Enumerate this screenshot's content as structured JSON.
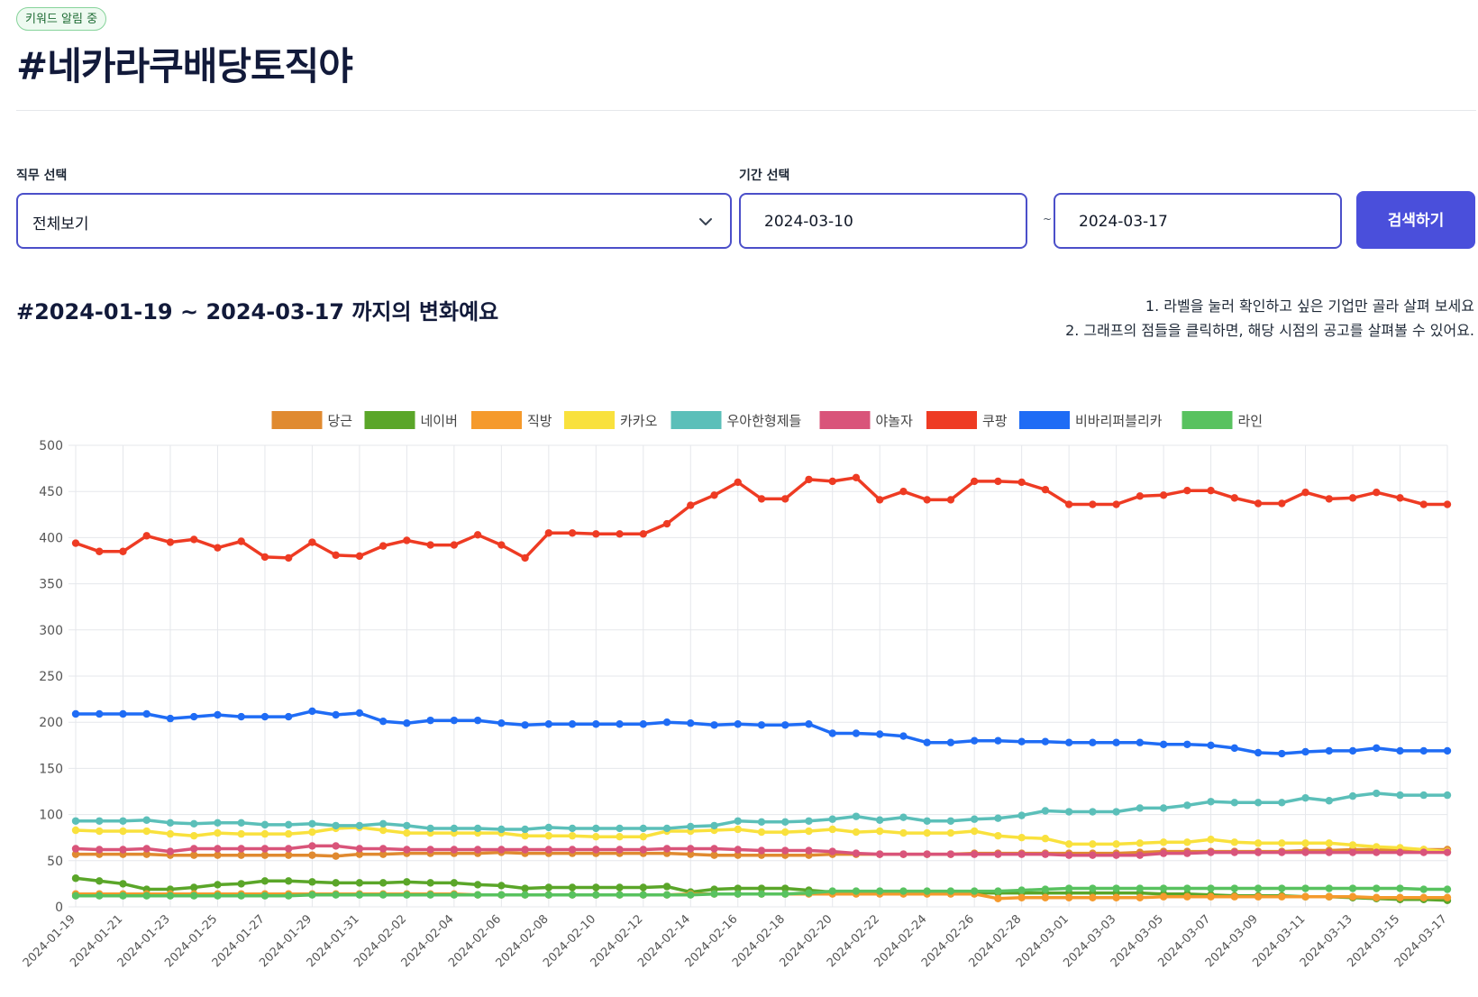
{
  "header": {
    "badge": "키워드 알림 중",
    "title": "#네카라쿠배당토직야"
  },
  "filters": {
    "job_label": "직무 선택",
    "job_value": "전체보기",
    "period_label": "기간 선택",
    "start_date": "2024-03-10",
    "tilde": "~",
    "end_date": "2024-03-17",
    "search_label": "검색하기"
  },
  "section": {
    "subtitle": "#2024-01-19 ~ 2024-03-17 까지의 변화예요",
    "note1": "1. 라벨을 눌러 확인하고 싶은 기업만 골라 살펴 보세요",
    "note2": "2. 그래프의 점들을 클릭하면, 해당 시점의 공고를 살펴볼 수 있어요."
  },
  "chart_data": {
    "type": "line",
    "ylim": [
      0,
      500
    ],
    "yticks": [
      0,
      50,
      100,
      150,
      200,
      250,
      300,
      350,
      400,
      450,
      500
    ],
    "legend_position": "top",
    "grid": true,
    "x": [
      "2024-01-19",
      "2024-01-20",
      "2024-01-21",
      "2024-01-22",
      "2024-01-23",
      "2024-01-24",
      "2024-01-25",
      "2024-01-26",
      "2024-01-27",
      "2024-01-28",
      "2024-01-29",
      "2024-01-30",
      "2024-01-31",
      "2024-02-01",
      "2024-02-02",
      "2024-02-03",
      "2024-02-04",
      "2024-02-05",
      "2024-02-06",
      "2024-02-07",
      "2024-02-08",
      "2024-02-09",
      "2024-02-10",
      "2024-02-11",
      "2024-02-12",
      "2024-02-13",
      "2024-02-14",
      "2024-02-15",
      "2024-02-16",
      "2024-02-17",
      "2024-02-18",
      "2024-02-19",
      "2024-02-20",
      "2024-02-21",
      "2024-02-22",
      "2024-02-23",
      "2024-02-24",
      "2024-02-25",
      "2024-02-26",
      "2024-02-27",
      "2024-02-28",
      "2024-02-29",
      "2024-03-01",
      "2024-03-02",
      "2024-03-03",
      "2024-03-04",
      "2024-03-05",
      "2024-03-06",
      "2024-03-07",
      "2024-03-08",
      "2024-03-09",
      "2024-03-10",
      "2024-03-11",
      "2024-03-12",
      "2024-03-13",
      "2024-03-14",
      "2024-03-15",
      "2024-03-16",
      "2024-03-17"
    ],
    "xticks": [
      "2024-01-19",
      "2024-01-21",
      "2024-01-23",
      "2024-01-25",
      "2024-01-27",
      "2024-01-29",
      "2024-01-31",
      "2024-02-02",
      "2024-02-04",
      "2024-02-06",
      "2024-02-08",
      "2024-02-10",
      "2024-02-12",
      "2024-02-14",
      "2024-02-16",
      "2024-02-18",
      "2024-02-20",
      "2024-02-22",
      "2024-02-24",
      "2024-02-26",
      "2024-02-28",
      "2024-03-01",
      "2024-03-03",
      "2024-03-05",
      "2024-03-07",
      "2024-03-09",
      "2024-03-11",
      "2024-03-13",
      "2024-03-15",
      "2024-03-17"
    ],
    "series": [
      {
        "name": "당근",
        "color": "#e08a30",
        "values": [
          57,
          57,
          57,
          57,
          56,
          56,
          56,
          56,
          56,
          56,
          56,
          55,
          57,
          57,
          58,
          58,
          58,
          58,
          59,
          58,
          58,
          58,
          58,
          58,
          58,
          58,
          57,
          56,
          56,
          56,
          56,
          56,
          57,
          57,
          57,
          57,
          57,
          57,
          58,
          58,
          58,
          58,
          58,
          58,
          58,
          59,
          60,
          60,
          60,
          60,
          60,
          60,
          61,
          61,
          62,
          62,
          62,
          62,
          62
        ]
      },
      {
        "name": "네이버",
        "color": "#5aa629",
        "values": [
          31,
          28,
          25,
          19,
          19,
          21,
          24,
          25,
          28,
          28,
          27,
          26,
          26,
          26,
          27,
          26,
          26,
          24,
          23,
          20,
          21,
          21,
          21,
          21,
          21,
          22,
          16,
          19,
          20,
          20,
          20,
          18,
          16,
          16,
          15,
          15,
          15,
          15,
          15,
          15,
          15,
          15,
          15,
          15,
          15,
          15,
          14,
          14,
          13,
          12,
          12,
          12,
          11,
          11,
          10,
          9,
          8,
          8,
          7
        ]
      },
      {
        "name": "직방",
        "color": "#f59a2c",
        "values": [
          14,
          14,
          14,
          14,
          14,
          14,
          14,
          14,
          14,
          14,
          14,
          14,
          14,
          14,
          14,
          14,
          14,
          13,
          13,
          13,
          13,
          13,
          13,
          13,
          13,
          13,
          14,
          14,
          14,
          14,
          14,
          14,
          14,
          14,
          14,
          14,
          14,
          14,
          14,
          9,
          10,
          10,
          10,
          10,
          10,
          10,
          11,
          11,
          11,
          11,
          11,
          11,
          11,
          11,
          11,
          10,
          10,
          10,
          10
        ]
      },
      {
        "name": "카카오",
        "color": "#f9e13d",
        "values": [
          83,
          82,
          82,
          82,
          79,
          77,
          80,
          79,
          79,
          79,
          81,
          85,
          86,
          83,
          80,
          80,
          80,
          80,
          80,
          77,
          77,
          77,
          76,
          76,
          76,
          82,
          82,
          83,
          84,
          81,
          81,
          82,
          84,
          81,
          82,
          80,
          80,
          80,
          82,
          77,
          75,
          74,
          68,
          68,
          68,
          69,
          70,
          70,
          73,
          70,
          69,
          69,
          69,
          69,
          67,
          65,
          64,
          62,
          60
        ]
      },
      {
        "name": "우아한형제들",
        "color": "#5bbfb9",
        "values": [
          93,
          93,
          93,
          94,
          91,
          90,
          91,
          91,
          89,
          89,
          90,
          88,
          88,
          90,
          88,
          85,
          85,
          85,
          84,
          84,
          86,
          85,
          85,
          85,
          85,
          85,
          87,
          88,
          93,
          92,
          92,
          93,
          95,
          98,
          94,
          97,
          93,
          93,
          95,
          96,
          99,
          104,
          103,
          103,
          103,
          107,
          107,
          110,
          114,
          113,
          113,
          113,
          118,
          115,
          120,
          123,
          121,
          121,
          121
        ]
      },
      {
        "name": "야놀자",
        "color": "#d9547a",
        "values": [
          63,
          62,
          62,
          63,
          60,
          63,
          63,
          63,
          63,
          63,
          66,
          66,
          63,
          63,
          62,
          62,
          62,
          62,
          62,
          62,
          62,
          62,
          62,
          62,
          62,
          63,
          63,
          63,
          62,
          61,
          61,
          61,
          60,
          58,
          57,
          57,
          57,
          57,
          57,
          57,
          57,
          57,
          56,
          56,
          56,
          56,
          58,
          58,
          59,
          59,
          59,
          59,
          59,
          59,
          59,
          59,
          59,
          59,
          59
        ]
      },
      {
        "name": "쿠팡",
        "color": "#ee3b23",
        "values": [
          394,
          385,
          385,
          402,
          395,
          398,
          389,
          396,
          379,
          378,
          395,
          381,
          380,
          391,
          397,
          392,
          392,
          403,
          392,
          378,
          405,
          405,
          404,
          404,
          404,
          415,
          435,
          446,
          460,
          442,
          442,
          463,
          461,
          465,
          441,
          450,
          441,
          441,
          461,
          461,
          460,
          452,
          436,
          436,
          436,
          445,
          446,
          451,
          451,
          443,
          437,
          437,
          449,
          442,
          443,
          449,
          443,
          436,
          436
        ]
      },
      {
        "name": "비바리퍼블리카",
        "color": "#1f6cf5",
        "values": [
          209,
          209,
          209,
          209,
          204,
          206,
          208,
          206,
          206,
          206,
          212,
          208,
          210,
          201,
          199,
          202,
          202,
          202,
          199,
          197,
          198,
          198,
          198,
          198,
          198,
          200,
          199,
          197,
          198,
          197,
          197,
          198,
          188,
          188,
          187,
          185,
          178,
          178,
          180,
          180,
          179,
          179,
          178,
          178,
          178,
          178,
          176,
          176,
          175,
          172,
          167,
          166,
          168,
          169,
          169,
          172,
          169,
          169,
          169
        ]
      },
      {
        "name": "라인",
        "color": "#58c25f",
        "values": [
          12,
          12,
          12,
          12,
          12,
          12,
          12,
          12,
          12,
          12,
          13,
          13,
          13,
          13,
          13,
          13,
          13,
          13,
          13,
          13,
          13,
          13,
          13,
          13,
          13,
          13,
          13,
          14,
          14,
          14,
          14,
          15,
          17,
          17,
          17,
          17,
          17,
          17,
          17,
          17,
          18,
          19,
          20,
          20,
          20,
          20,
          20,
          20,
          20,
          20,
          20,
          20,
          20,
          20,
          20,
          20,
          20,
          19,
          19
        ]
      }
    ]
  }
}
